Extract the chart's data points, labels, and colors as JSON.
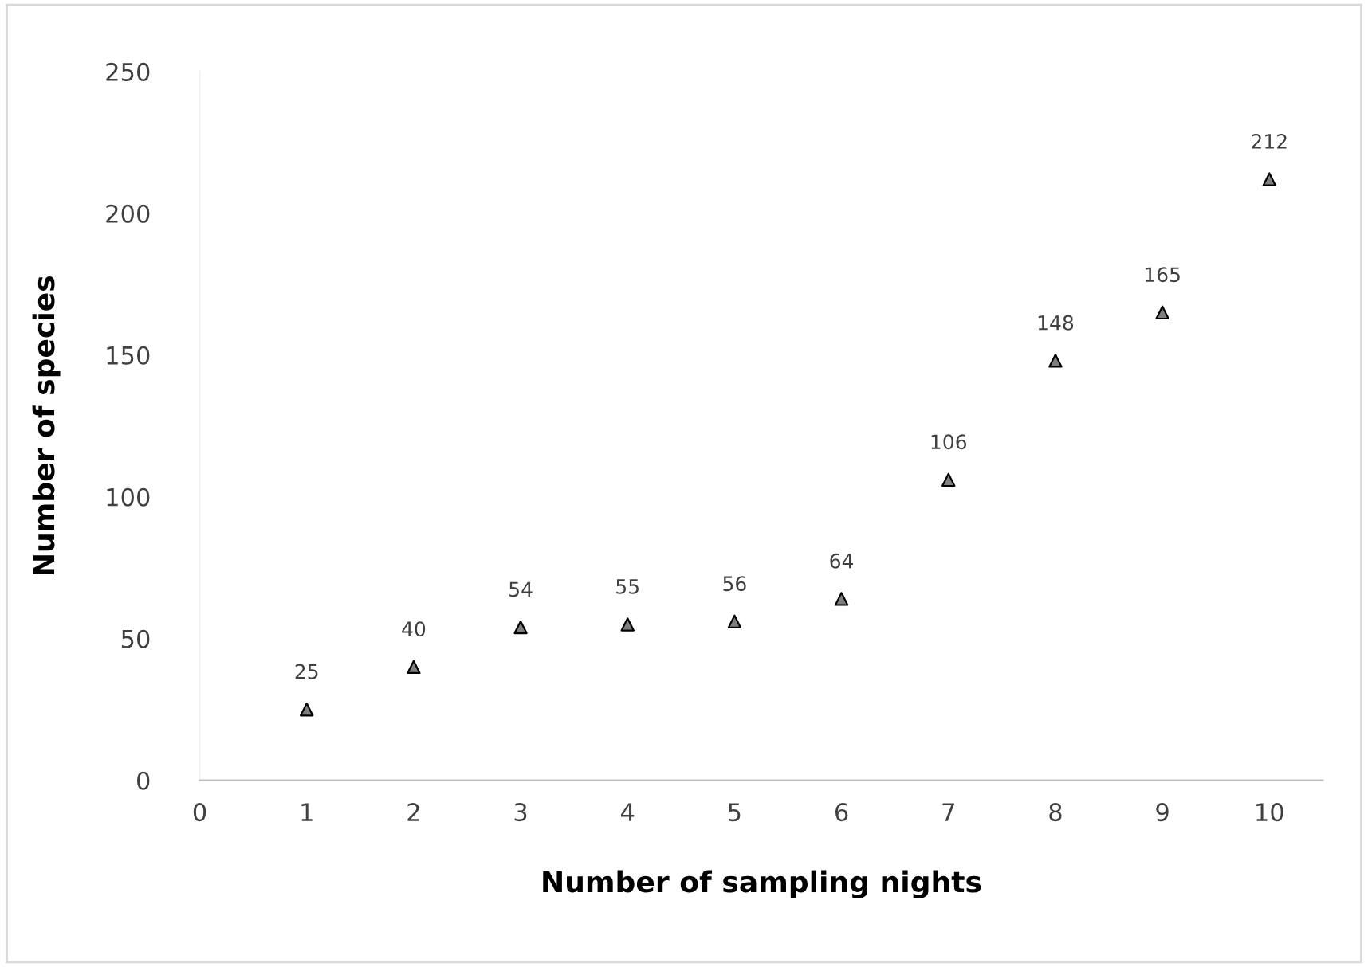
{
  "chart_data": {
    "type": "scatter",
    "xlabel": "Number of sampling nights",
    "ylabel": "Number of species",
    "x": [
      1,
      2,
      3,
      4,
      5,
      6,
      7,
      8,
      9,
      10
    ],
    "series": [
      {
        "color": "#7f7f7f",
        "values": [
          25,
          40,
          54,
          55,
          56,
          64,
          106,
          148,
          165,
          212
        ]
      }
    ],
    "xlim": [
      0,
      10.5
    ],
    "xticks": [
      0,
      1,
      2,
      3,
      4,
      5,
      6,
      7,
      8,
      9,
      10
    ],
    "ylim": [
      0,
      250
    ],
    "yticks": [
      0,
      50,
      100,
      150,
      200,
      250
    ],
    "marker": "triangle",
    "data_labels": true,
    "grid": false,
    "legend": false
  }
}
